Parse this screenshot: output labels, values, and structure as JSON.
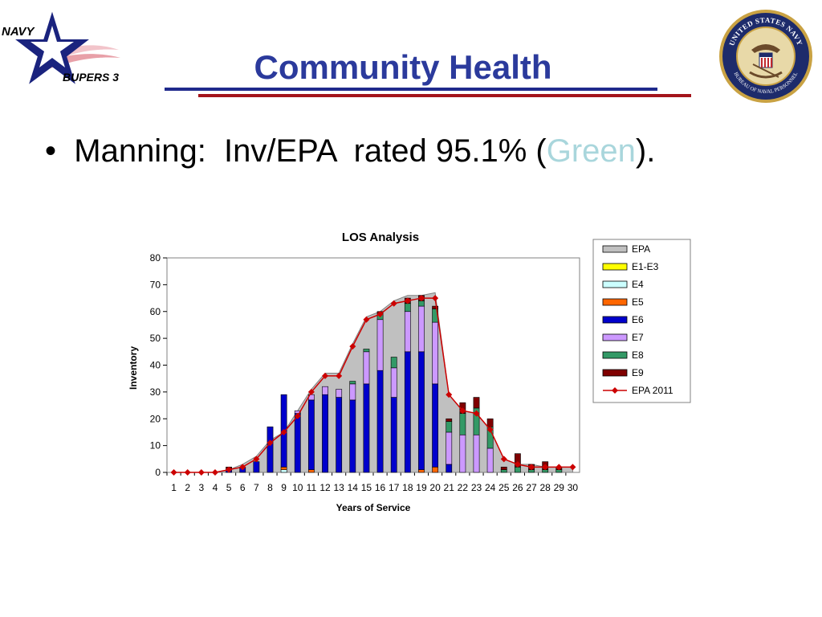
{
  "slide": {
    "title": "Community Health",
    "bullet_marker": "•",
    "bullet_prefix": "Manning:  Inv/EPA  rated 95.1% (",
    "bullet_highlight": "Green",
    "bullet_suffix": ").",
    "highlight_color": "#a9d6dc",
    "title_color": "#2b3a9c"
  },
  "logo_left": {
    "text_top": "NAVY",
    "text_bottom": "BUPERS 3"
  },
  "logo_right": {
    "text_ring_top": "UNITED STATES NAVY",
    "text_ring_bottom": "BUREAU OF NAVAL PERSONNEL"
  },
  "chart_data": {
    "type": "bar",
    "title": "LOS Analysis",
    "xlabel": "Years of Service",
    "ylabel": "Inventory",
    "ylim": [
      0,
      80
    ],
    "yticks": [
      0,
      10,
      20,
      30,
      40,
      50,
      60,
      70,
      80
    ],
    "categories": [
      "1",
      "2",
      "3",
      "4",
      "5",
      "6",
      "7",
      "8",
      "9",
      "10",
      "11",
      "12",
      "13",
      "14",
      "15",
      "16",
      "17",
      "18",
      "19",
      "20",
      "21",
      "22",
      "23",
      "24",
      "25",
      "26",
      "27",
      "28",
      "29",
      "30"
    ],
    "legend_position": "right",
    "area_series": {
      "name": "EPA",
      "color": "#c0c0c0",
      "values": [
        0,
        0,
        0,
        0,
        1,
        3,
        6,
        12,
        15,
        23,
        31,
        37,
        37,
        48,
        58,
        60,
        64,
        66,
        66,
        67,
        29,
        23,
        22,
        16,
        5,
        3,
        3,
        2,
        2,
        2
      ]
    },
    "stacked_series": [
      {
        "name": "E1-E3",
        "color": "#ffff00",
        "values": [
          0,
          0,
          0,
          0,
          0,
          0,
          0,
          0,
          0,
          0,
          0,
          0,
          0,
          0,
          0,
          0,
          0,
          0,
          0,
          0,
          0,
          0,
          0,
          0,
          0,
          0,
          0,
          0,
          0,
          0
        ]
      },
      {
        "name": "E4",
        "color": "#ccffff",
        "values": [
          0,
          0,
          0,
          0,
          0,
          0,
          0,
          0,
          1,
          0,
          0,
          0,
          0,
          0,
          0,
          0,
          0,
          0,
          0,
          0,
          0,
          0,
          0,
          0,
          0,
          0,
          0,
          0,
          0,
          0
        ]
      },
      {
        "name": "E5",
        "color": "#ff6600",
        "values": [
          0,
          0,
          0,
          0,
          0,
          0,
          0,
          0,
          1,
          0,
          1,
          0,
          0,
          0,
          0,
          0,
          0,
          0,
          1,
          2,
          0,
          0,
          0,
          0,
          0,
          0,
          0,
          0,
          0,
          0
        ]
      },
      {
        "name": "E6",
        "color": "#0000cc",
        "values": [
          0,
          0,
          0,
          0,
          1,
          2,
          4,
          17,
          27,
          22,
          26,
          29,
          28,
          27,
          33,
          38,
          28,
          45,
          44,
          31,
          3,
          0,
          0,
          0,
          0,
          0,
          0,
          0,
          0,
          0
        ]
      },
      {
        "name": "E7",
        "color": "#cc99ff",
        "values": [
          0,
          0,
          0,
          0,
          0,
          0,
          0,
          0,
          0,
          1,
          2,
          3,
          3,
          6,
          12,
          19,
          11,
          15,
          17,
          23,
          12,
          14,
          14,
          9,
          0,
          0,
          0,
          0,
          0,
          0
        ]
      },
      {
        "name": "E8",
        "color": "#339966",
        "values": [
          0,
          0,
          0,
          0,
          0,
          0,
          0,
          0,
          0,
          0,
          0,
          0,
          0,
          1,
          1,
          2,
          4,
          3,
          2,
          5,
          4,
          8,
          10,
          8,
          1,
          2,
          1,
          1,
          1,
          0
        ]
      },
      {
        "name": "E9",
        "color": "#800000",
        "values": [
          0,
          0,
          0,
          0,
          1,
          0,
          0,
          0,
          0,
          0,
          0,
          0,
          0,
          0,
          0,
          1,
          0,
          2,
          2,
          1,
          1,
          4,
          4,
          3,
          1,
          5,
          2,
          3,
          1,
          0
        ]
      }
    ],
    "line_series": {
      "name": "EPA 2011",
      "color": "#cc0000",
      "values": [
        0,
        0,
        0,
        0,
        1,
        2,
        5,
        11,
        15,
        21,
        30,
        36,
        36,
        47,
        57,
        59,
        63,
        64,
        65,
        65,
        29,
        23,
        22,
        16,
        5,
        3,
        2,
        2,
        2,
        2
      ]
    }
  }
}
